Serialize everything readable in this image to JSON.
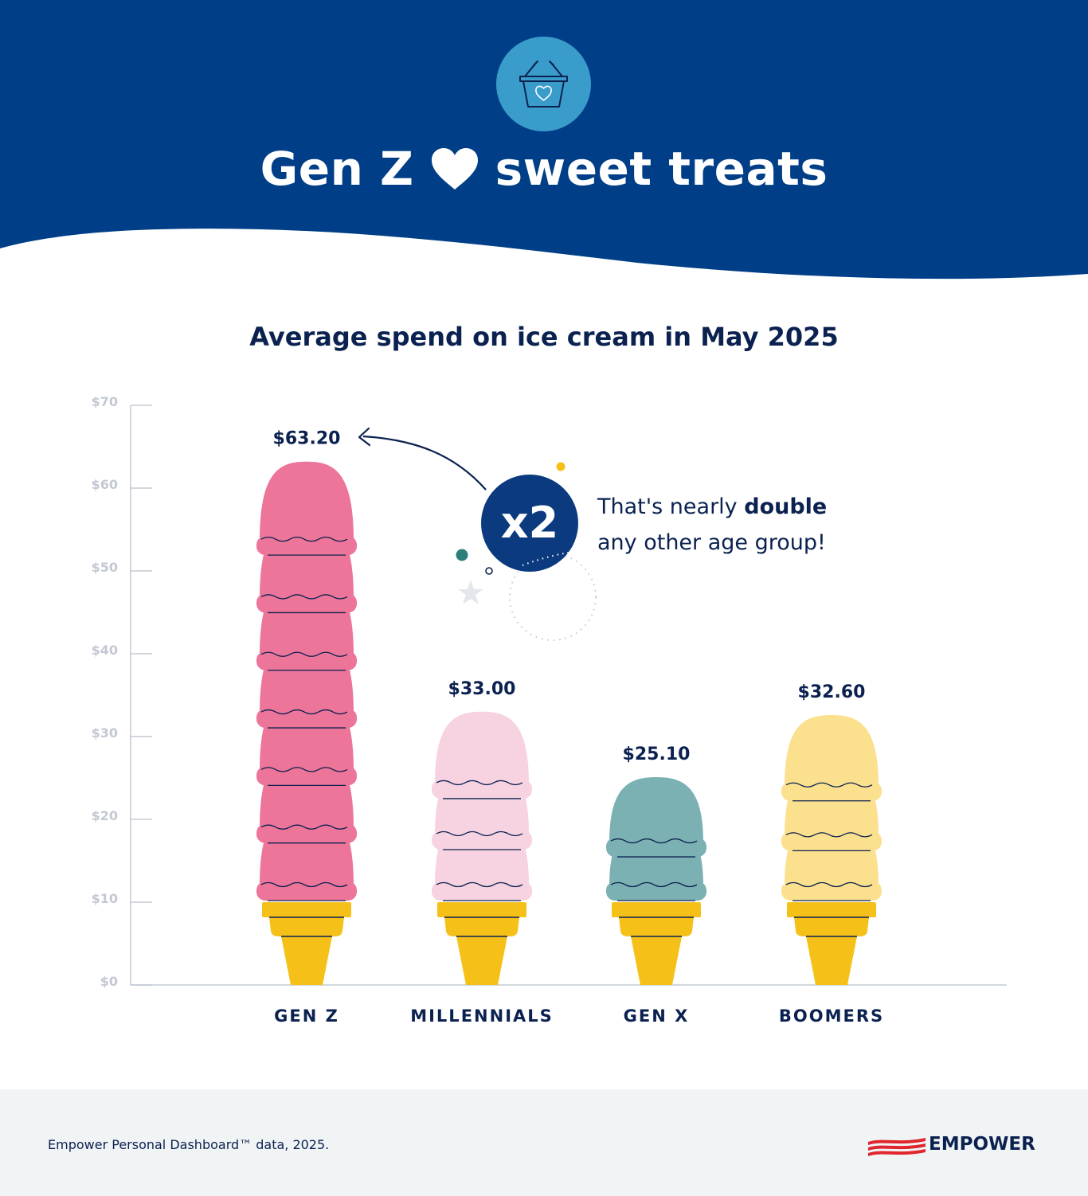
{
  "header": {
    "title_before": "Gen Z",
    "title_after": "sweet treats",
    "heart_icon": "heart-icon",
    "basket_icon": "shopping-basket-heart-icon",
    "background_color": "#003f87",
    "badge_color": "#3a9ccb"
  },
  "chart_title": "Average spend on ice cream in May 2025",
  "callout": {
    "badge": "x2",
    "text_before": "That's nearly ",
    "text_bold": "double",
    "text_after": "any other age group!",
    "badge_color": "#0b3a7e"
  },
  "chart_data": {
    "type": "bar",
    "style": "ice cream cones",
    "title": "Average spend on ice cream in May 2025",
    "categories": [
      "GEN Z",
      "MILLENNIALS",
      "GEN X",
      "BOOMERS"
    ],
    "values": [
      63.2,
      33.0,
      25.1,
      32.6
    ],
    "value_labels": [
      "$63.20",
      "$33.00",
      "$25.10",
      "$32.60"
    ],
    "scoop_counts": [
      7,
      3,
      2,
      3
    ],
    "scoop_colors": [
      "#ec7599",
      "#f7d2e1",
      "#7cb1b3",
      "#fbe08e"
    ],
    "cone_color": "#f5c118",
    "ylim": [
      0,
      70
    ],
    "yticks": [
      0,
      10,
      20,
      30,
      40,
      50,
      60,
      70
    ],
    "ytick_labels": [
      "$0",
      "$10",
      "$20",
      "$30",
      "$40",
      "$50",
      "$60",
      "$70"
    ],
    "xlabel": "",
    "ylabel": "",
    "grid": false,
    "legend": "none"
  },
  "footer": {
    "source": "Empower Personal Dashboard™ data, 2025.",
    "brand": "EMPOWER",
    "brand_mark_icon": "empower-flag-icon"
  }
}
